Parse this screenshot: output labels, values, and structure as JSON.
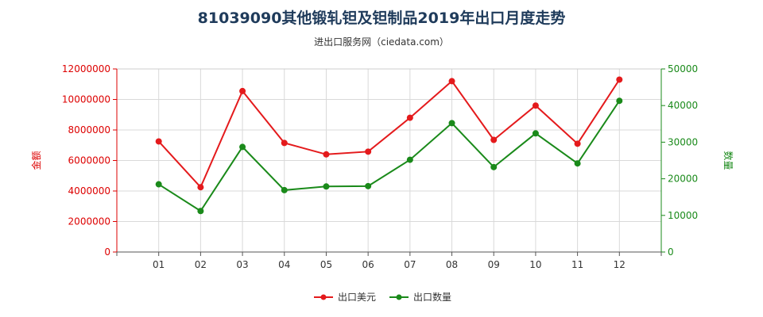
{
  "chart_data": {
    "type": "line",
    "title": "81039090其他锻轧钽及钽制品2019年出口月度走势",
    "subtitle": "进出口服务网（ciedata.com）",
    "categories": [
      "01",
      "02",
      "03",
      "04",
      "05",
      "06",
      "07",
      "08",
      "09",
      "10",
      "11",
      "12"
    ],
    "left_axis": {
      "label": "金额",
      "ylim": [
        0,
        12000000
      ],
      "ticks": [
        "0",
        "2000000",
        "4000000",
        "6000000",
        "8000000",
        "10000000",
        "12000000"
      ],
      "color": "#dd0000"
    },
    "right_axis": {
      "label": "数量",
      "ylim": [
        0,
        50000
      ],
      "ticks": [
        "0",
        "10000",
        "20000",
        "30000",
        "40000",
        "50000"
      ],
      "color": "#1a8a1a"
    },
    "series": [
      {
        "name": "出口美元",
        "axis": "left",
        "color": "#e41a1c",
        "values": [
          7250000,
          4250000,
          10550000,
          7150000,
          6400000,
          6580000,
          8800000,
          11200000,
          7350000,
          9600000,
          7100000,
          11300000
        ]
      },
      {
        "name": "出口数量",
        "axis": "right",
        "color": "#1a8a1a",
        "values": [
          18500,
          11200,
          28700,
          16900,
          17900,
          18000,
          25200,
          35200,
          23200,
          32400,
          24200,
          41300
        ]
      }
    ],
    "grid": true,
    "legend_position": "bottom-center"
  }
}
